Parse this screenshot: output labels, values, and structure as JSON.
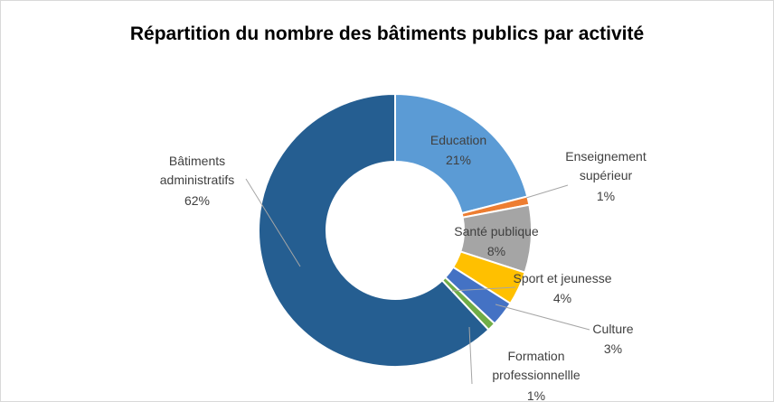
{
  "chart_data": {
    "type": "donut",
    "title": "Répartition du nombre des bâtiments publics par activité",
    "categories": [
      "Education",
      "Enseignement supérieur",
      "Santé publique",
      "Sport et jeunesse",
      "Culture",
      "Formation professionnellle",
      "Bâtiments administratifs"
    ],
    "values": [
      21,
      1,
      8,
      4,
      3,
      1,
      62
    ],
    "value_labels": [
      "21%",
      "1%",
      "8%",
      "4%",
      "3%",
      "1%",
      "62%"
    ],
    "colors": [
      "#5b9bd5",
      "#ed7d31",
      "#a5a5a5",
      "#ffc000",
      "#4472c4",
      "#70ad47",
      "#255e91"
    ]
  }
}
